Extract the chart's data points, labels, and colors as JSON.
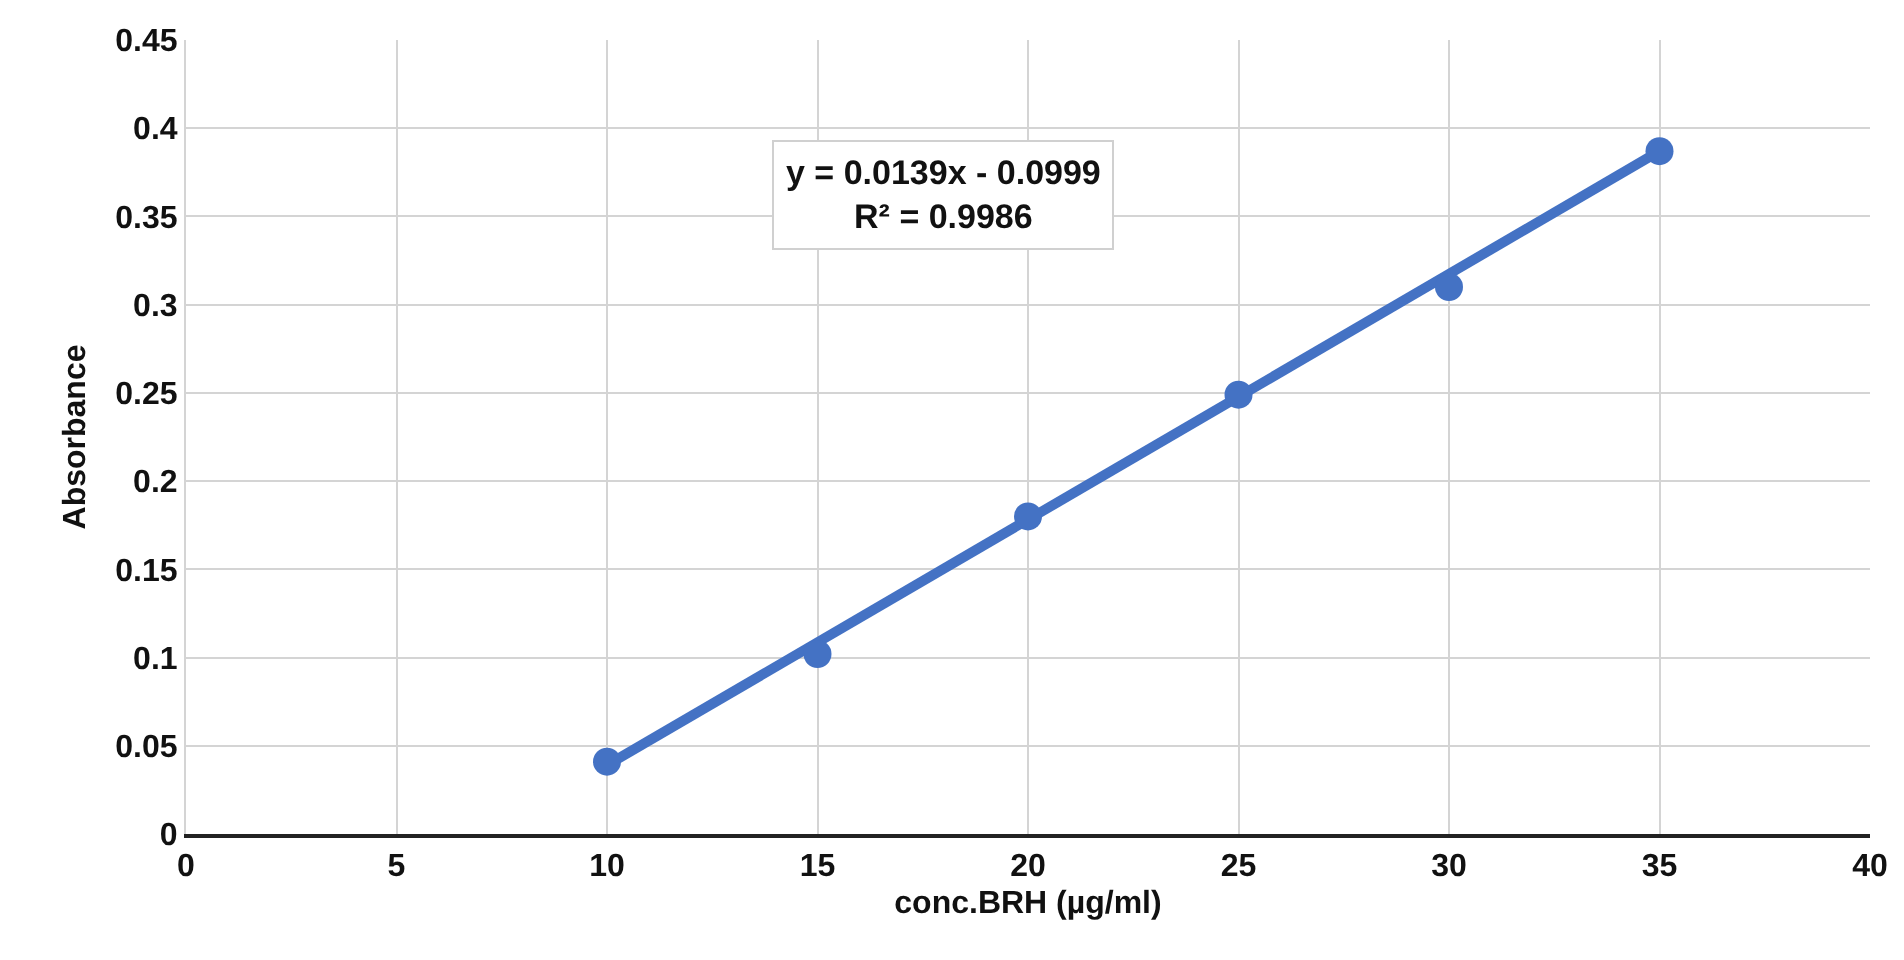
{
  "chart_data": {
    "type": "scatter",
    "xlabel": "conc.BRH (µg/ml)",
    "ylabel": "Absorbance",
    "annotations": [
      "y = 0.0139x - 0.0999\nR² = 0.9986"
    ],
    "x": [
      10,
      15,
      20,
      25,
      30,
      35
    ],
    "series": [
      {
        "type": "scatter",
        "color": "#4472c4",
        "values": [
          0.041,
          0.102,
          0.18,
          0.249,
          0.31,
          0.387
        ],
        "marker": "circle"
      },
      {
        "type": "line",
        "color": "#4472c4",
        "x": [
          10,
          35
        ],
        "values": [
          0.039,
          0.387
        ],
        "marker": "none"
      }
    ],
    "xlim": [
      0,
      40
    ],
    "xticks": [
      0,
      5,
      10,
      15,
      20,
      25,
      30,
      35,
      40
    ],
    "ylim": [
      0,
      0.45
    ],
    "yticks": [
      0,
      0.05,
      0.1,
      0.15,
      0.2,
      0.25,
      0.3,
      0.35,
      0.4,
      0.45
    ],
    "grid": true
  }
}
